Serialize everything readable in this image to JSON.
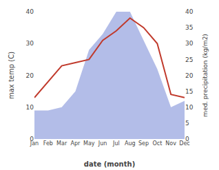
{
  "chart_data": {
    "type": "line",
    "xlabel": "date (month)",
    "ylabel": "max temp (C)",
    "y2label": "med. precipitation (kg/m2)",
    "categories": [
      "Jan",
      "Feb",
      "Mar",
      "Apr",
      "May",
      "Jun",
      "Jul",
      "Aug",
      "Sep",
      "Oct",
      "Nov",
      "Dec"
    ],
    "series": [
      {
        "type": "area",
        "axis": "y2",
        "color": "#b3bde8",
        "values": [
          9,
          9,
          10,
          15,
          28,
          33,
          40,
          40,
          31,
          22,
          10,
          12
        ]
      },
      {
        "type": "line",
        "color": "#c0392b",
        "values": [
          13,
          18,
          23,
          24,
          25,
          31,
          34,
          38,
          35,
          30,
          14,
          13
        ]
      }
    ],
    "ylim": [
      0,
      40
    ],
    "yticks": [
      0,
      10,
      20,
      30,
      40
    ],
    "y2lim": [
      0,
      40
    ],
    "y2ticks": [
      0,
      5,
      10,
      15,
      20,
      25,
      30,
      35,
      40
    ],
    "grid": false
  }
}
